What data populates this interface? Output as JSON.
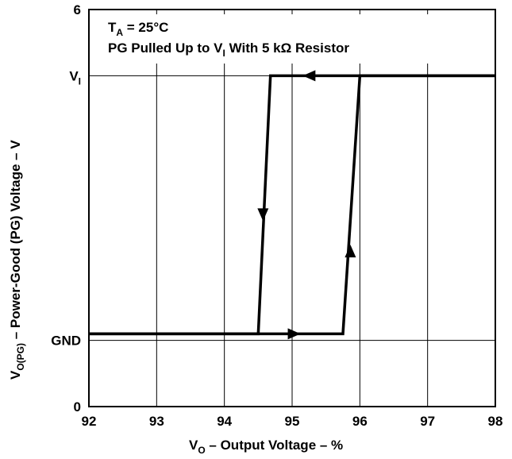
{
  "chart_data": {
    "type": "line",
    "xlabel_main": "V",
    "xlabel_sub": "O",
    "xlabel_rest": " – Output Voltage – %",
    "ylabel_main": "V",
    "ylabel_sub": "O(PG)",
    "ylabel_rest": " – Power-Good (PG) Voltage – V",
    "xlim": [
      92,
      98
    ],
    "ylim": [
      0,
      6
    ],
    "x_ticks": [
      {
        "value": 92,
        "label": "92"
      },
      {
        "value": 93,
        "label": "93"
      },
      {
        "value": 94,
        "label": "94"
      },
      {
        "value": 95,
        "label": "95"
      },
      {
        "value": 96,
        "label": "96"
      },
      {
        "value": 97,
        "label": "97"
      },
      {
        "value": 98,
        "label": "98"
      }
    ],
    "y_ticks": [
      {
        "value": 0,
        "label": "0"
      },
      {
        "value": 1,
        "label": "GND",
        "sub": ""
      },
      {
        "value": 5,
        "label": "V",
        "sub": "I"
      },
      {
        "value": 6,
        "label": "6"
      }
    ],
    "grid": true,
    "annotations": {
      "line1_main": "T",
      "line1_sub": "A",
      "line1_rest": " = 25°C",
      "line2_main": "PG Pulled Up to V",
      "line2_sub": "I",
      "line2_rest": " With 5 kΩ Resistor"
    },
    "series": [
      {
        "x": [
          92,
          94.5,
          94.68,
          98
        ],
        "y": [
          1.1,
          1.1,
          5.0,
          5.0
        ],
        "direction": "decreasing"
      },
      {
        "x": [
          92,
          95.75,
          96.0,
          98
        ],
        "y": [
          1.1,
          1.1,
          5.0,
          5.0
        ],
        "direction": "increasing"
      }
    ],
    "arrows": [
      {
        "x": 95.25,
        "y": 5.0,
        "direction": "left"
      },
      {
        "x": 94.57,
        "y": 2.9,
        "direction": "down"
      },
      {
        "x": 95.03,
        "y": 1.1,
        "direction": "right"
      },
      {
        "x": 95.86,
        "y": 2.35,
        "direction": "up"
      }
    ]
  }
}
